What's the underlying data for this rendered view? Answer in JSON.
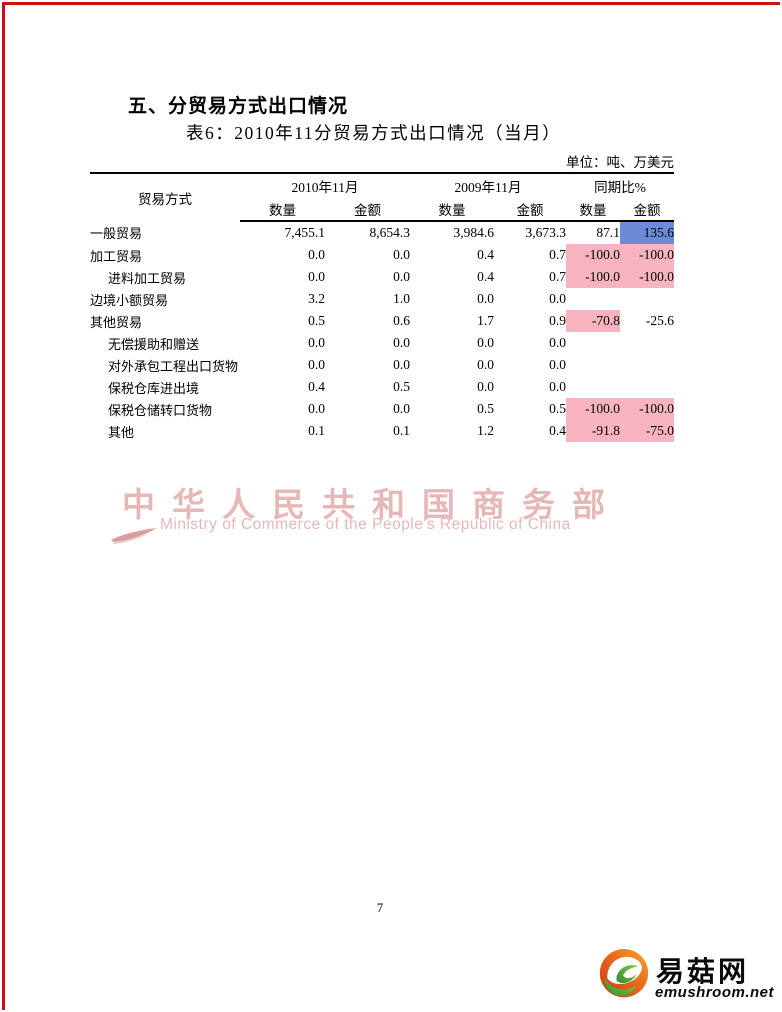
{
  "page": {
    "section_heading": "五、分贸易方式出口情况",
    "table_title": "表6：2010年11分贸易方式出口情况（当月）",
    "unit_note": "单位：吨、万美元",
    "page_number": "7"
  },
  "table": {
    "header": {
      "row_label": "贸易方式",
      "groups": [
        "2010年11月",
        "2009年11月",
        "同期比%"
      ],
      "sub": [
        "数量",
        "金额"
      ]
    },
    "rows": [
      {
        "label": "一般贸易",
        "indent": 0,
        "values": [
          "7,455.1",
          "8,654.3",
          "3,984.6",
          "3,673.3",
          "87.1",
          "135.6"
        ],
        "bg": [
          "",
          "",
          "",
          "",
          "",
          "blue"
        ]
      },
      {
        "label": "加工贸易",
        "indent": 0,
        "values": [
          "0.0",
          "0.0",
          "0.4",
          "0.7",
          "-100.0",
          "-100.0"
        ],
        "bg": [
          "",
          "",
          "",
          "",
          "pink",
          "pink"
        ]
      },
      {
        "label": "进料加工贸易",
        "indent": 1,
        "values": [
          "0.0",
          "0.0",
          "0.4",
          "0.7",
          "-100.0",
          "-100.0"
        ],
        "bg": [
          "",
          "",
          "",
          "",
          "pink",
          "pink"
        ]
      },
      {
        "label": "边境小额贸易",
        "indent": 0,
        "values": [
          "3.2",
          "1.0",
          "0.0",
          "0.0",
          "",
          ""
        ],
        "bg": [
          "",
          "",
          "",
          "",
          "",
          ""
        ]
      },
      {
        "label": "其他贸易",
        "indent": 0,
        "values": [
          "0.5",
          "0.6",
          "1.7",
          "0.9",
          "-70.8",
          "-25.6"
        ],
        "bg": [
          "",
          "",
          "",
          "",
          "pink",
          ""
        ]
      },
      {
        "label": "无偿援助和赠送",
        "indent": 1,
        "values": [
          "0.0",
          "0.0",
          "0.0",
          "0.0",
          "",
          ""
        ],
        "bg": [
          "",
          "",
          "",
          "",
          "",
          ""
        ]
      },
      {
        "label": "对外承包工程出口货物",
        "indent": 1,
        "values": [
          "0.0",
          "0.0",
          "0.0",
          "0.0",
          "",
          ""
        ],
        "bg": [
          "",
          "",
          "",
          "",
          "",
          ""
        ]
      },
      {
        "label": "保税仓库进出境",
        "indent": 1,
        "values": [
          "0.4",
          "0.5",
          "0.0",
          "0.0",
          "",
          ""
        ],
        "bg": [
          "",
          "",
          "",
          "",
          "",
          ""
        ]
      },
      {
        "label": "保税仓储转口货物",
        "indent": 1,
        "values": [
          "0.0",
          "0.0",
          "0.5",
          "0.5",
          "-100.0",
          "-100.0"
        ],
        "bg": [
          "",
          "",
          "",
          "",
          "pink",
          "pink"
        ]
      },
      {
        "label": "其他",
        "indent": 1,
        "values": [
          "0.1",
          "0.1",
          "1.2",
          "0.4",
          "-91.8",
          "-75.0"
        ],
        "bg": [
          "",
          "",
          "",
          "",
          "pink",
          "pink"
        ]
      }
    ]
  },
  "watermark": {
    "cn": "中华人民共和国商务部",
    "en": "Ministry of Commerce of the People's Republic of China"
  },
  "footer_logo": {
    "cn": "易菇网",
    "en": "emushroom.net"
  },
  "colors": {
    "highlight_blue": "#6b8bd6",
    "highlight_pink": "#f8b3c1",
    "border_red": "#cc1111",
    "watermark_pink": "#e6b7b7",
    "watermark_swoosh": "#db9e9e"
  }
}
